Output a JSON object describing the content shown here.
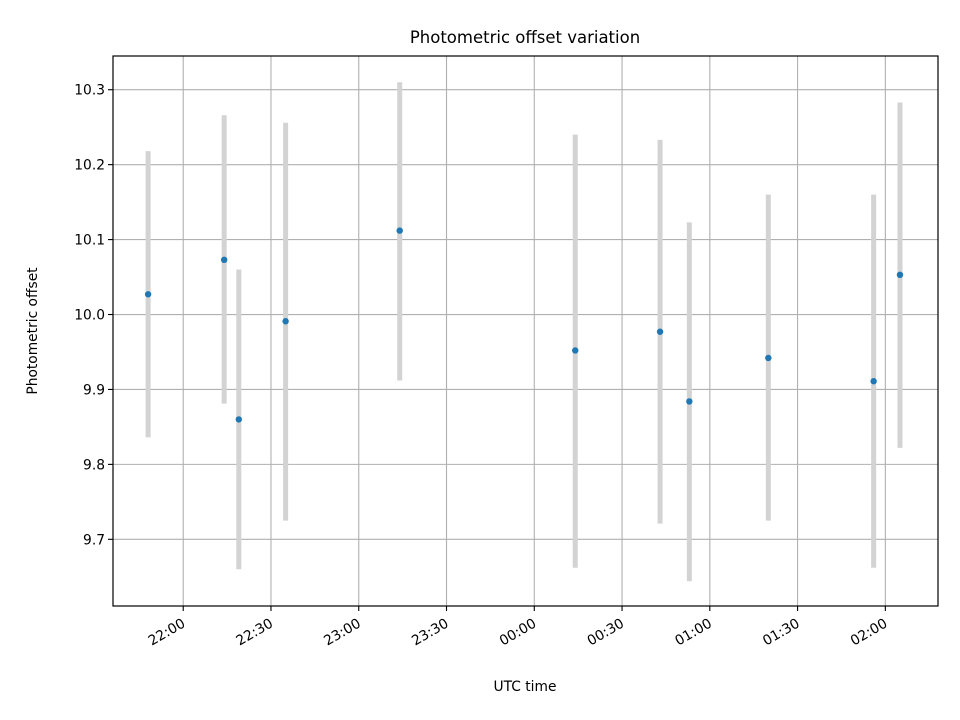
{
  "chart_data": {
    "type": "scatter",
    "title": "Photometric offset variation",
    "xlabel": "UTC time",
    "ylabel": "Photometric offset",
    "x_type": "time",
    "xlim": [
      "21:36",
      "02:18"
    ],
    "ylim": [
      9.611,
      10.345
    ],
    "x_ticks": [
      "22:00",
      "22:30",
      "23:00",
      "23:30",
      "00:00",
      "00:30",
      "01:00",
      "01:30",
      "02:00"
    ],
    "y_ticks": [
      "9.7",
      "9.8",
      "9.9",
      "10.0",
      "10.1",
      "10.2",
      "10.3"
    ],
    "y_tick_values": [
      9.7,
      9.8,
      9.9,
      10.0,
      10.1,
      10.2,
      10.3
    ],
    "grid": true,
    "marker_color": "#1f77b4",
    "errorbar_color": "#d3d3d3",
    "points": [
      {
        "x": "21:48",
        "y": 10.027,
        "yerr_low": 9.836,
        "yerr_high": 10.218
      },
      {
        "x": "22:14",
        "y": 10.073,
        "yerr_low": 9.881,
        "yerr_high": 10.266
      },
      {
        "x": "22:19",
        "y": 9.86,
        "yerr_low": 9.66,
        "yerr_high": 10.06
      },
      {
        "x": "22:35",
        "y": 9.991,
        "yerr_low": 9.725,
        "yerr_high": 10.256
      },
      {
        "x": "23:14",
        "y": 10.112,
        "yerr_low": 9.912,
        "yerr_high": 10.31
      },
      {
        "x": "00:14",
        "y": 9.952,
        "yerr_low": 9.662,
        "yerr_high": 10.24
      },
      {
        "x": "00:43",
        "y": 9.977,
        "yerr_low": 9.721,
        "yerr_high": 10.233
      },
      {
        "x": "00:53",
        "y": 9.884,
        "yerr_low": 9.644,
        "yerr_high": 10.123
      },
      {
        "x": "01:20",
        "y": 9.942,
        "yerr_low": 9.725,
        "yerr_high": 10.16
      },
      {
        "x": "01:56",
        "y": 9.911,
        "yerr_low": 9.662,
        "yerr_high": 10.16
      },
      {
        "x": "02:05",
        "y": 10.053,
        "yerr_low": 9.822,
        "yerr_high": 10.283
      }
    ]
  }
}
